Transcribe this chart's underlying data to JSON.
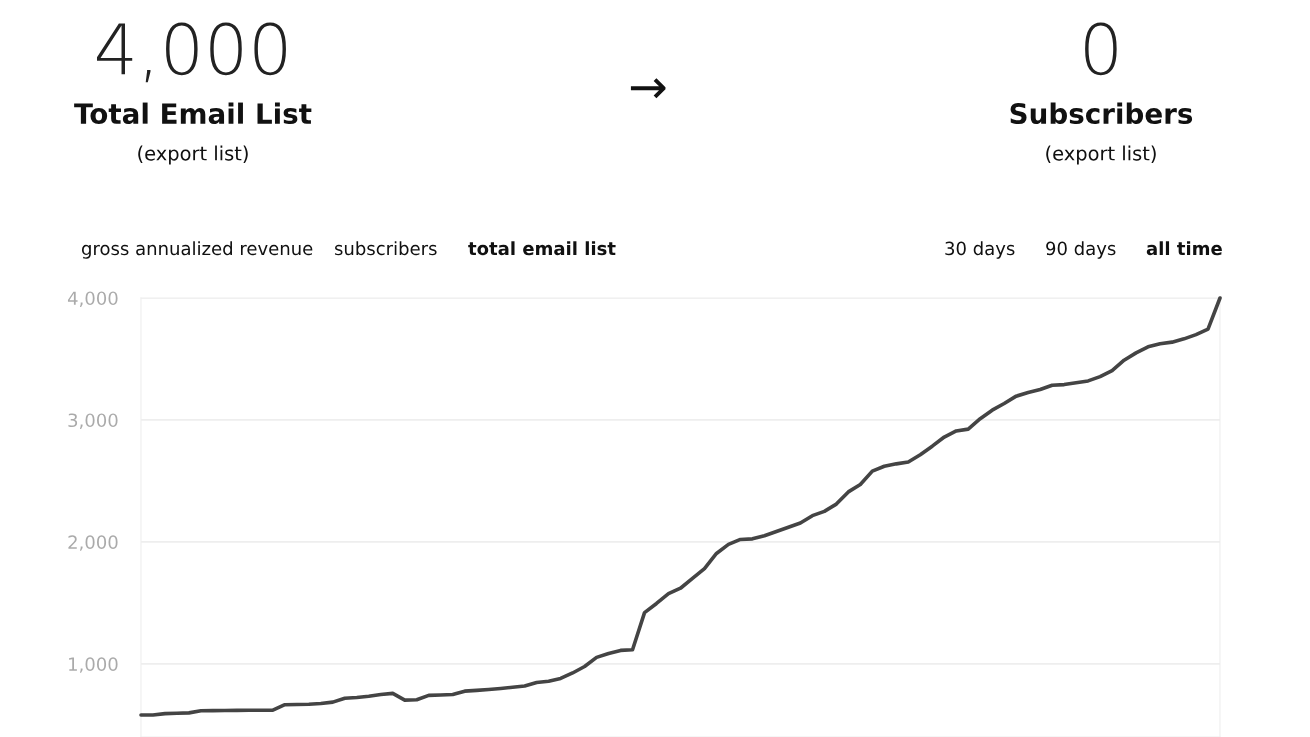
{
  "chart_data": {
    "type": "line",
    "annotations": [
      "4,000",
      "Total Email List",
      "(export list)",
      "→",
      "0",
      "Subscribers",
      "(export list)",
      "gross annualized revenue",
      "subscribers",
      "total email list",
      "30 days",
      "90 days",
      "all time"
    ],
    "categories": [
      null,
      null,
      null,
      null,
      null,
      null,
      null,
      null,
      null,
      null,
      null,
      null,
      null,
      null,
      null,
      null,
      null,
      null,
      null,
      null,
      null,
      null,
      null,
      null,
      null,
      null,
      null,
      null,
      null,
      null,
      null,
      null,
      null,
      null,
      null,
      null,
      null,
      null,
      null,
      null,
      null,
      null,
      null,
      null,
      null,
      null,
      null,
      null,
      null,
      null,
      null,
      null,
      null,
      null,
      null,
      null,
      null,
      null,
      null,
      null,
      null,
      null,
      null,
      null,
      null,
      null,
      null,
      null,
      null,
      null,
      null,
      null,
      null,
      null,
      null,
      null,
      null,
      null,
      null,
      null,
      null,
      null,
      null,
      null,
      null,
      null,
      null,
      null,
      null,
      null,
      null
    ],
    "series": [
      {
        "color": "#444444",
        "values": [
          580,
          580,
          592,
          595,
          598,
          615,
          616,
          617,
          618,
          619,
          619,
          620,
          665,
          667,
          669,
          675,
          686,
          718,
          724,
          734,
          748,
          758,
          702,
          705,
          741,
          745,
          748,
          776,
          782,
          790,
          798,
          808,
          818,
          847,
          857,
          880,
          925,
          978,
          1053,
          1085,
          1110,
          1115,
          1420,
          1495,
          1575,
          1620,
          1700,
          1780,
          1905,
          1980,
          2020,
          2025,
          2050,
          2085,
          2120,
          2155,
          2215,
          2250,
          2310,
          2410,
          2470,
          2580,
          2620,
          2640,
          2655,
          2715,
          2785,
          2860,
          2910,
          2925,
          3010,
          3080,
          3135,
          3195,
          3225,
          3250,
          3285,
          3290,
          3305,
          3320,
          3355,
          3405,
          3490,
          3550,
          3600,
          3625,
          3638,
          3665,
          3700,
          3745,
          4000
        ]
      }
    ],
    "ylim": [
      400,
      4000
    ],
    "yticks": [
      {
        "value": 1000,
        "label": "1,000"
      },
      {
        "value": 2000,
        "label": "2,000"
      },
      {
        "value": 3000,
        "label": "3,000"
      },
      {
        "value": 4000,
        "label": "4,000"
      }
    ],
    "tick_labels": "y",
    "grid": "y",
    "marker": "none",
    "line_style": "solid"
  }
}
